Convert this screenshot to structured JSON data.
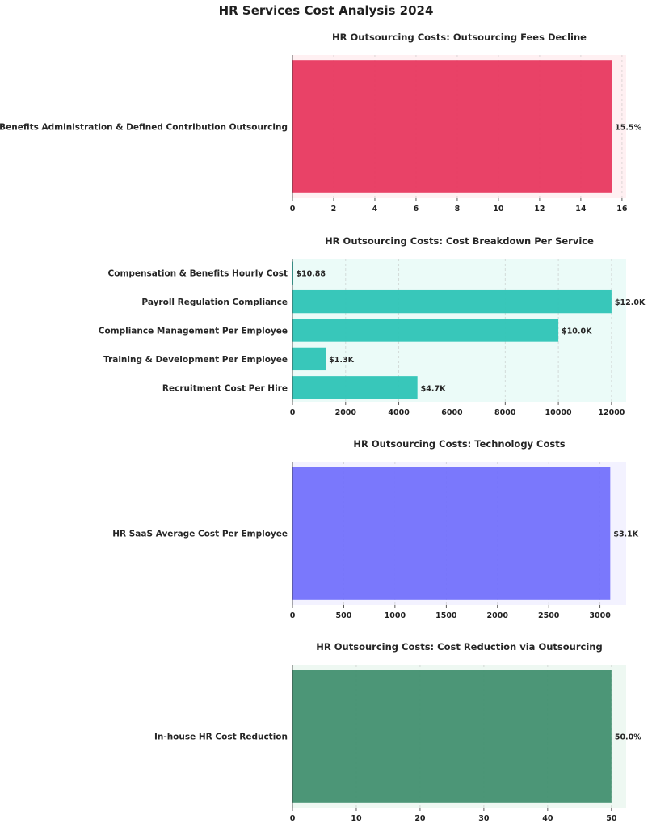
{
  "title": "HR Services Cost Analysis 2024",
  "chart_data": [
    {
      "type": "bar",
      "orientation": "horizontal",
      "title": "HR Outsourcing Costs: Outsourcing Fees Decline",
      "categories": [
        "Benefits Administration & Defined Contribution Outsourcing"
      ],
      "values": [
        15.5
      ],
      "value_labels": [
        "15.5%"
      ],
      "xlim": [
        0,
        16.2
      ],
      "xticks": [
        0,
        2,
        4,
        6,
        8,
        10,
        12,
        14,
        16
      ],
      "grid": true,
      "bar_color": "#e8385f",
      "background_color": "#fff0f2"
    },
    {
      "type": "bar",
      "orientation": "horizontal",
      "title": "HR Outsourcing Costs: Cost Breakdown Per Service",
      "categories": [
        "Compensation & Benefits Hourly Cost",
        "Payroll Regulation Compliance",
        "Compliance Management Per Employee",
        "Training & Development Per Employee",
        "Recruitment Cost Per Hire"
      ],
      "values": [
        10.88,
        12000,
        10000,
        1250,
        4700
      ],
      "value_labels": [
        "$10.88",
        "$12.0K",
        "$10.0K",
        "$1.3K",
        "$4.7K"
      ],
      "xlim": [
        0,
        12550
      ],
      "xticks": [
        0,
        2000,
        4000,
        6000,
        8000,
        10000,
        12000
      ],
      "grid": true,
      "bar_color": "#2ec4b6",
      "background_color": "#ebfbf8"
    },
    {
      "type": "bar",
      "orientation": "horizontal",
      "title": "HR Outsourcing Costs: Technology Costs",
      "categories": [
        "HR SaaS Average Cost Per Employee"
      ],
      "values": [
        3100
      ],
      "value_labels": [
        "$3.1K"
      ],
      "xlim": [
        0,
        3255
      ],
      "xticks": [
        0,
        500,
        1000,
        1500,
        2000,
        2500,
        3000
      ],
      "grid": true,
      "bar_color": "#7371fc",
      "background_color": "#f3f2ff"
    },
    {
      "type": "bar",
      "orientation": "horizontal",
      "title": "HR Outsourcing Costs: Cost Reduction via Outsourcing",
      "categories": [
        "In-house HR Cost Reduction"
      ],
      "values": [
        50
      ],
      "value_labels": [
        "50.0%"
      ],
      "xlim": [
        0,
        52.3
      ],
      "xticks": [
        0,
        10,
        20,
        30,
        40,
        50
      ],
      "grid": true,
      "bar_color": "#429070",
      "background_color": "#eef8f2"
    }
  ]
}
